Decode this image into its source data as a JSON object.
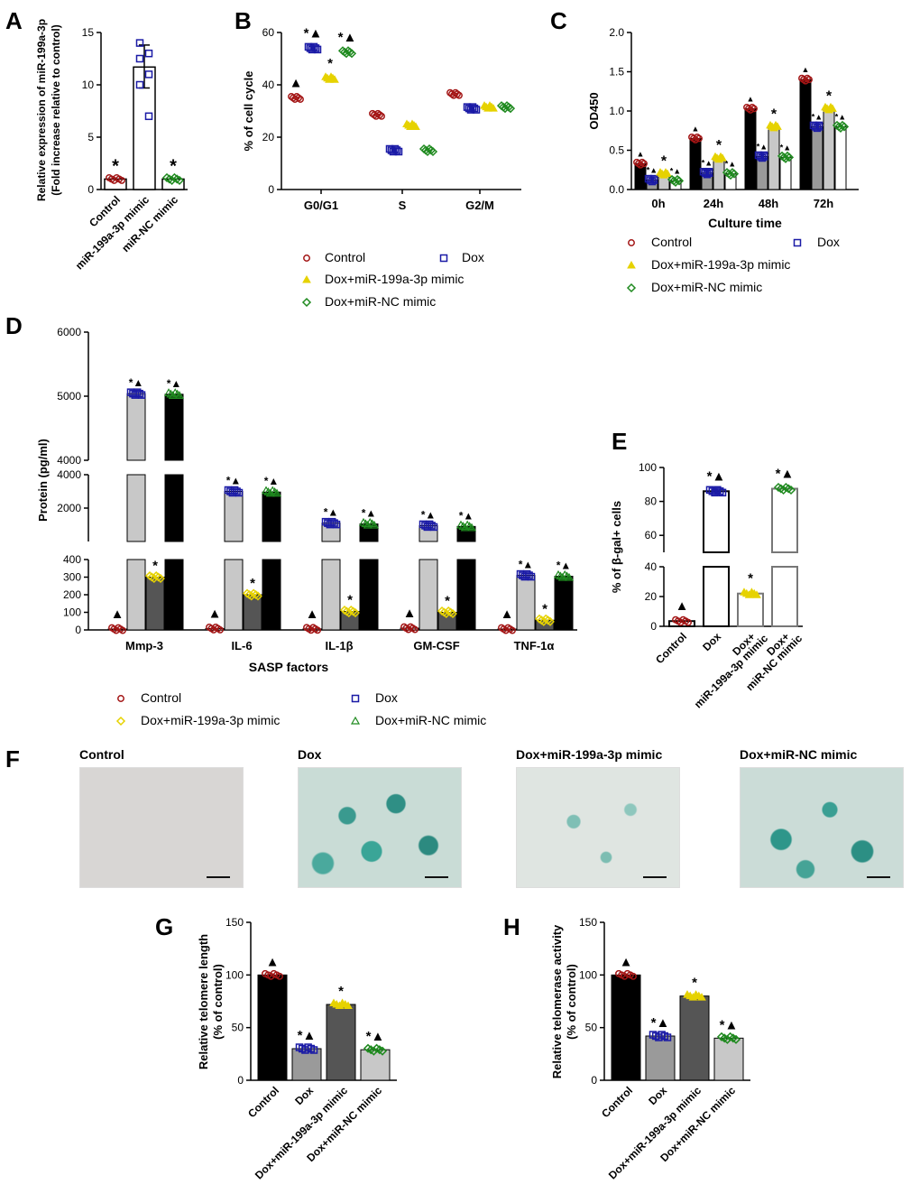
{
  "colors": {
    "control": "#a31515",
    "dox": "#1a1aa6",
    "mimic": "#e6d200",
    "nc": "#1f8a1f",
    "black": "#000000",
    "grey": "#9a9a9a",
    "lightgrey": "#c8c8c8",
    "dark": "#555555"
  },
  "panel_labels": {
    "A": "A",
    "B": "B",
    "C": "C",
    "D": "D",
    "E": "E",
    "F": "F",
    "G": "G",
    "H": "H"
  },
  "markers": {
    "star": "*",
    "tri": "▲",
    "startri": "*▲"
  },
  "chart_data": [
    {
      "id": "A",
      "type": "bar",
      "ylabel1": "Relative expression of miR-199a-3p",
      "ylabel2": "(Fold increase relative to control)",
      "categories": [
        "Control",
        "miR-199a-3p mimic",
        "miR-NC mimic"
      ],
      "values": [
        1.0,
        11.7,
        1.0
      ],
      "ylim": [
        0,
        15
      ],
      "yticks": [
        "0",
        "5",
        "10",
        "15"
      ],
      "annotations": [
        "*",
        "",
        "*"
      ]
    },
    {
      "id": "B",
      "type": "scatter",
      "ylabel": "% of cell cycle",
      "categories": [
        "G0/G1",
        "S",
        "G2/M"
      ],
      "ylim": [
        0,
        60
      ],
      "yticks": [
        "0",
        "20",
        "40",
        "60"
      ],
      "series": [
        {
          "name": "Control",
          "values": [
            35,
            28.5,
            36.5
          ]
        },
        {
          "name": "Dox",
          "values": [
            54,
            15,
            31
          ]
        },
        {
          "name": "Dox+miR-199a-3p mimic",
          "values": [
            42.5,
            24.5,
            31.5
          ]
        },
        {
          "name": "Dox+miR-NC mimic",
          "values": [
            52.5,
            15,
            31.5
          ]
        }
      ],
      "annotations_g0": [
        "▲",
        "*▲",
        "*",
        "*▲"
      ],
      "legend": [
        "Control",
        "Dox",
        "Dox+miR-199a-3p mimic",
        "Dox+miR-NC mimic"
      ]
    },
    {
      "id": "C",
      "type": "bar",
      "ylabel": "OD450",
      "xlabel": "Culture time",
      "categories": [
        "0h",
        "24h",
        "48h",
        "72h"
      ],
      "ylim": [
        0,
        2.0
      ],
      "yticks": [
        "0.0",
        "0.5",
        "1.0",
        "1.5",
        "2.0"
      ],
      "series": [
        {
          "name": "Control",
          "values": [
            0.33,
            0.65,
            1.03,
            1.4
          ]
        },
        {
          "name": "Dox",
          "values": [
            0.12,
            0.21,
            0.42,
            0.8
          ]
        },
        {
          "name": "Dox+miR-199a-3p mimic",
          "values": [
            0.2,
            0.4,
            0.8,
            1.03
          ]
        },
        {
          "name": "Dox+miR-NC mimic",
          "values": [
            0.11,
            0.2,
            0.41,
            0.8
          ]
        }
      ],
      "legend": [
        "Control",
        "Dox",
        "Dox+miR-199a-3p mimic",
        "Dox+miR-NC mimic"
      ]
    },
    {
      "id": "D",
      "type": "bar",
      "ylabel": "Protein (pg/ml)",
      "xlabel": "SASP factors",
      "categories": [
        "Mmp-3",
        "IL-6",
        "IL-1β",
        "GM-CSF",
        "TNF-1α"
      ],
      "yticks_top": [
        "4000",
        "5000",
        "6000"
      ],
      "yticks_mid": [
        "2000",
        "4000"
      ],
      "yticks_bot": [
        "0",
        "100",
        "200",
        "300",
        "400"
      ],
      "series": [
        {
          "name": "Control",
          "values": [
            5,
            8,
            6,
            10,
            5
          ]
        },
        {
          "name": "Dox",
          "values": [
            5040,
            3000,
            1100,
            950,
            310
          ]
        },
        {
          "name": "Dox+miR-199a-3p mimic",
          "values": [
            300,
            200,
            105,
            100,
            55
          ]
        },
        {
          "name": "Dox+miR-NC mimic",
          "values": [
            5030,
            2960,
            1050,
            900,
            305
          ]
        }
      ],
      "legend": [
        "Control",
        "Dox",
        "Dox+miR-199a-3p mimic",
        "Dox+miR-NC mimic"
      ]
    },
    {
      "id": "E",
      "type": "bar",
      "ylabel": "% of β-gal+ cells",
      "categories": [
        "Control",
        "Dox",
        "Dox+ miR-199a-3p mimic",
        "Dox+ miR-NC mimic"
      ],
      "cat_lines": [
        [
          "Control"
        ],
        [
          "Dox"
        ],
        [
          "Dox+",
          "miR-199a-3p mimic"
        ],
        [
          "Dox+",
          "miR-NC mimic"
        ]
      ],
      "values": [
        3.5,
        86,
        22,
        87.5
      ],
      "yticks_low": [
        "0",
        "20",
        "40"
      ],
      "yticks_high": [
        "60",
        "80",
        "100"
      ],
      "annotations": [
        "▲",
        "*▲",
        "*",
        "*▲"
      ]
    },
    {
      "id": "G",
      "type": "bar",
      "ylabel1": "Relative telomere length",
      "ylabel2": "(% of control)",
      "categories": [
        "Control",
        "Dox",
        "Dox+miR-199a-3p mimic",
        "Dox+miR-NC mimic"
      ],
      "values": [
        100,
        30,
        72,
        29
      ],
      "ylim": [
        0,
        150
      ],
      "yticks": [
        "0",
        "50",
        "100",
        "150"
      ],
      "annotations": [
        "▲",
        "*▲",
        "*",
        "*▲"
      ]
    },
    {
      "id": "H",
      "type": "bar",
      "ylabel1": "Relative telomerase activity",
      "ylabel2": "(% of control)",
      "categories": [
        "Control",
        "Dox",
        "Dox+miR-199a-3p mimic",
        "Dox+miR-NC mimic"
      ],
      "values": [
        100,
        42,
        80,
        40
      ],
      "ylim": [
        0,
        150
      ],
      "yticks": [
        "0",
        "50",
        "100",
        "150"
      ],
      "annotations": [
        "▲",
        "*▲",
        "*",
        "*▲"
      ]
    }
  ],
  "micrographs": {
    "titles": [
      "Control",
      "Dox",
      "Dox+miR-199a-3p mimic",
      "Dox+miR-NC mimic"
    ]
  }
}
